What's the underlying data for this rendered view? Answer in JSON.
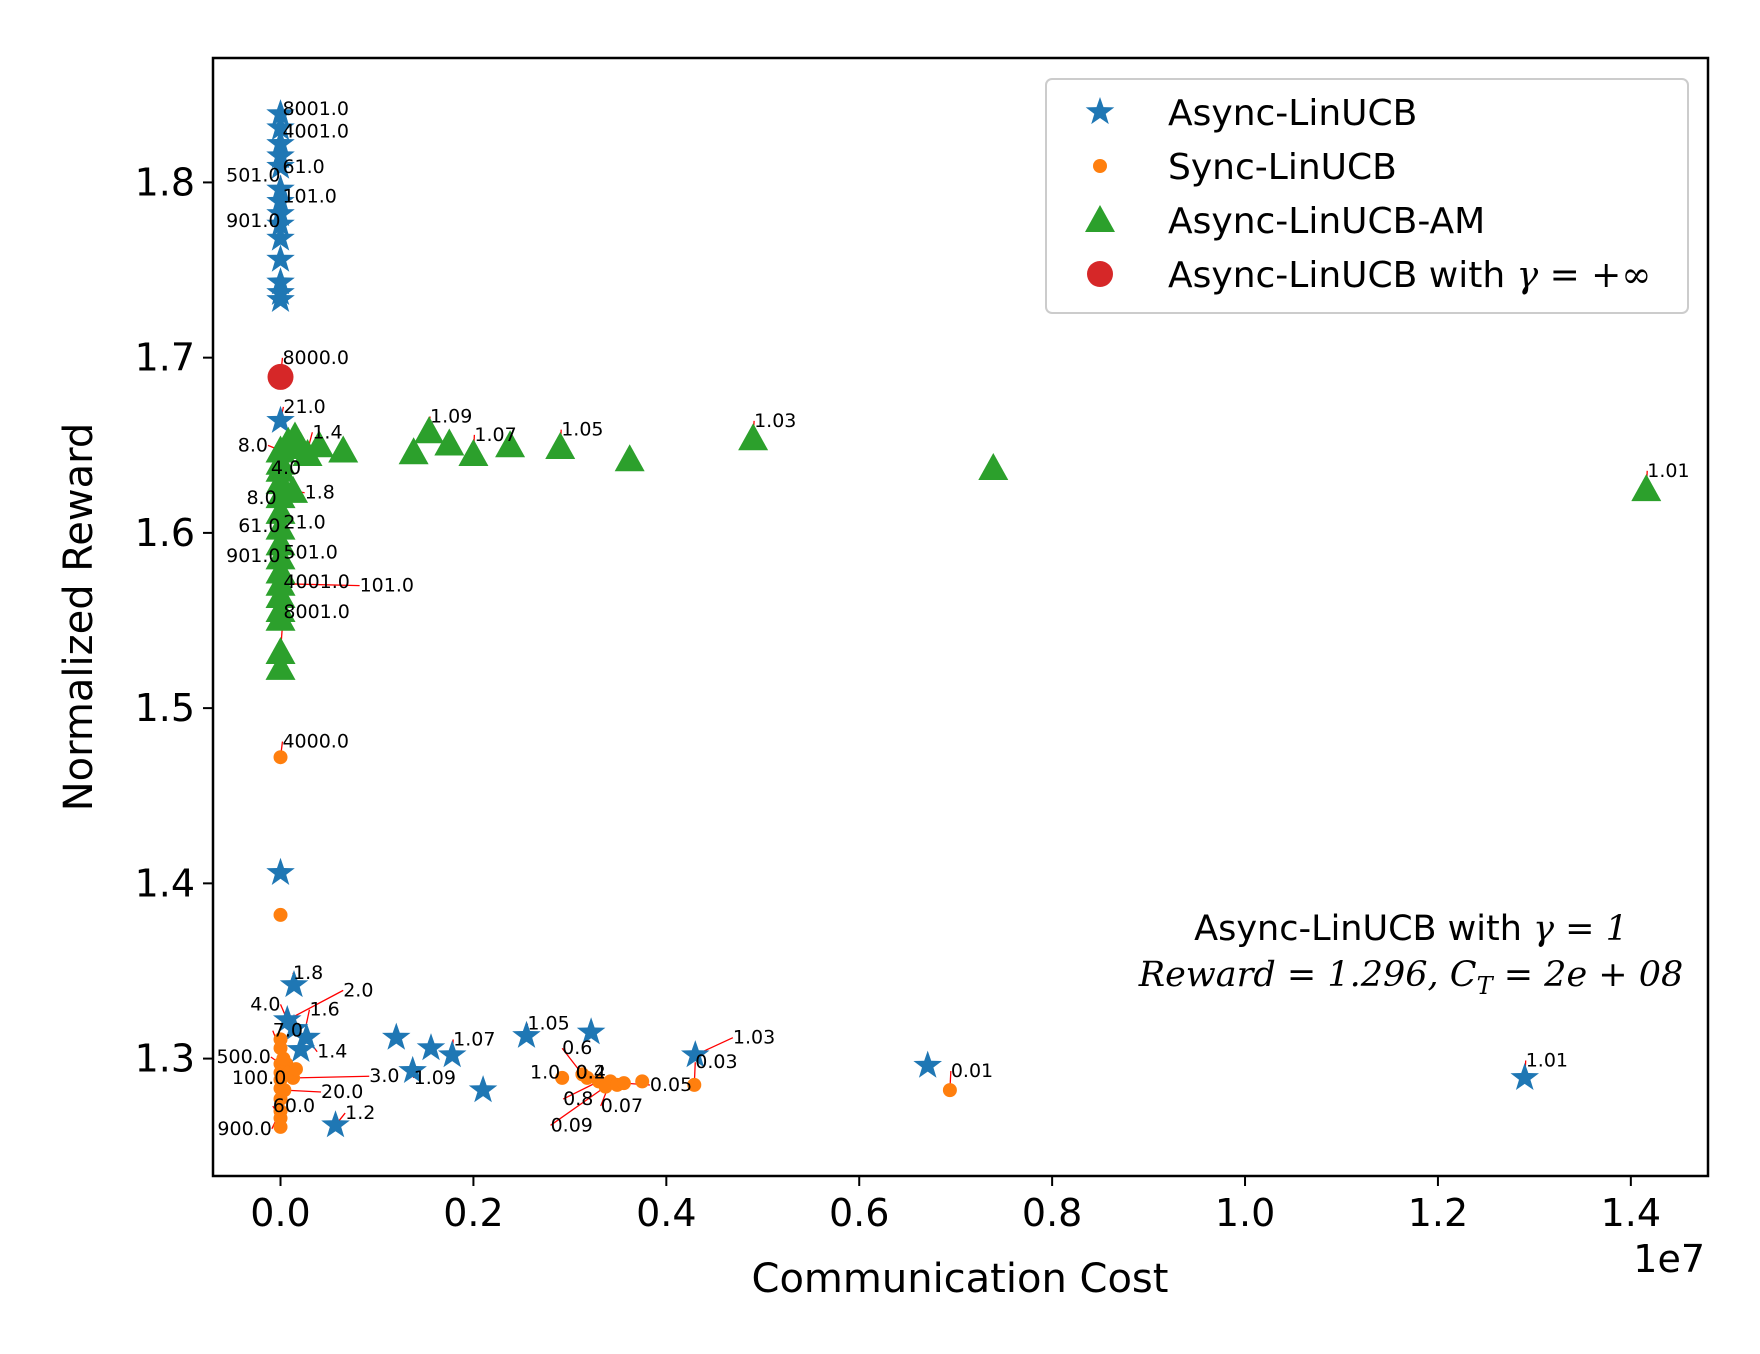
{
  "chart_data": {
    "type": "scatter",
    "title": "",
    "xlabel": "Communication Cost",
    "ylabel": "Normalized Reward",
    "x_offset_text": "1e7",
    "xlim": [
      -0.07,
      1.48
    ],
    "ylim": [
      1.233,
      1.871
    ],
    "x_ticks": [
      0.0,
      0.2,
      0.4,
      0.6,
      0.8,
      1.0,
      1.2,
      1.4
    ],
    "x_tick_labels": [
      "0.0",
      "0.2",
      "0.4",
      "0.6",
      "0.8",
      "1.0",
      "1.2",
      "1.4"
    ],
    "y_ticks": [
      1.3,
      1.4,
      1.5,
      1.6,
      1.7,
      1.8
    ],
    "y_tick_labels": [
      "1.3",
      "1.4",
      "1.5",
      "1.6",
      "1.7",
      "1.8"
    ],
    "grid": false,
    "legend_position": "top-right",
    "colors": {
      "async": "#1f77b4",
      "sync": "#ff7f0e",
      "am": "#2ca02c",
      "inf": "#d62728",
      "annotation_line": "#ff0000"
    },
    "legend": [
      {
        "label": "Async-LinUCB",
        "series": "async"
      },
      {
        "label": "Sync-LinUCB",
        "series": "sync"
      },
      {
        "label": "Async-LinUCB-AM",
        "series": "am"
      },
      {
        "label": "Async-LinUCB with ",
        "math": "γ = +∞",
        "series": "inf"
      }
    ],
    "note": {
      "line1_text": "Async-LinUCB with ",
      "line1_math": "γ = 1",
      "line2_math": "Reward = 1.296, C",
      "line2_sub": "T",
      "line2_rest": " = 2e + 08"
    },
    "series": {
      "async": {
        "name": "Async-LinUCB",
        "marker": "star",
        "points": [
          {
            "x": 0.0,
            "y": 1.839
          },
          {
            "x": 0.0,
            "y": 1.831
          },
          {
            "x": 0.0,
            "y": 1.822
          },
          {
            "x": 0.0,
            "y": 1.815
          },
          {
            "x": 0.0,
            "y": 1.809
          },
          {
            "x": 0.0,
            "y": 1.796
          },
          {
            "x": 0.0,
            "y": 1.789
          },
          {
            "x": 0.0,
            "y": 1.782
          },
          {
            "x": 0.0,
            "y": 1.776
          },
          {
            "x": 0.0,
            "y": 1.768
          },
          {
            "x": 0.0,
            "y": 1.756
          },
          {
            "x": 0.0,
            "y": 1.743
          },
          {
            "x": 0.0,
            "y": 1.737
          },
          {
            "x": 0.0,
            "y": 1.733
          },
          {
            "x": 0.0,
            "y": 1.664
          },
          {
            "x": 0.0,
            "y": 1.406
          },
          {
            "x": 0.014,
            "y": 1.342
          },
          {
            "x": 0.007,
            "y": 1.322
          },
          {
            "x": 0.014,
            "y": 1.317
          },
          {
            "x": 0.027,
            "y": 1.312
          },
          {
            "x": 0.021,
            "y": 1.305
          },
          {
            "x": 0.057,
            "y": 1.262
          },
          {
            "x": 0.12,
            "y": 1.312
          },
          {
            "x": 0.156,
            "y": 1.306
          },
          {
            "x": 0.137,
            "y": 1.293
          },
          {
            "x": 0.178,
            "y": 1.302
          },
          {
            "x": 0.21,
            "y": 1.282
          },
          {
            "x": 0.255,
            "y": 1.313
          },
          {
            "x": 0.322,
            "y": 1.315
          },
          {
            "x": 0.43,
            "y": 1.302
          },
          {
            "x": 0.671,
            "y": 1.296
          },
          {
            "x": 1.29,
            "y": 1.289
          }
        ]
      },
      "sync": {
        "name": "Sync-LinUCB",
        "marker": "circle",
        "points": [
          {
            "x": 0.0,
            "y": 1.472
          },
          {
            "x": 0.0,
            "y": 1.382
          },
          {
            "x": 0.0,
            "y": 1.311
          },
          {
            "x": 0.0,
            "y": 1.306
          },
          {
            "x": 0.0,
            "y": 1.297
          },
          {
            "x": 0.0,
            "y": 1.292
          },
          {
            "x": 0.0,
            "y": 1.288
          },
          {
            "x": 0.0,
            "y": 1.283
          },
          {
            "x": 0.0,
            "y": 1.277
          },
          {
            "x": 0.0,
            "y": 1.27
          },
          {
            "x": 0.0,
            "y": 1.266
          },
          {
            "x": 0.0,
            "y": 1.261
          },
          {
            "x": 0.006,
            "y": 1.297
          },
          {
            "x": 0.009,
            "y": 1.292
          },
          {
            "x": 0.013,
            "y": 1.289
          },
          {
            "x": 0.016,
            "y": 1.294
          },
          {
            "x": 0.004,
            "y": 1.282
          },
          {
            "x": 0.003,
            "y": 1.3
          },
          {
            "x": 0.292,
            "y": 1.289
          },
          {
            "x": 0.313,
            "y": 1.291
          },
          {
            "x": 0.318,
            "y": 1.289
          },
          {
            "x": 0.33,
            "y": 1.287
          },
          {
            "x": 0.337,
            "y": 1.284
          },
          {
            "x": 0.342,
            "y": 1.287
          },
          {
            "x": 0.349,
            "y": 1.285
          },
          {
            "x": 0.356,
            "y": 1.286
          },
          {
            "x": 0.375,
            "y": 1.287
          },
          {
            "x": 0.429,
            "y": 1.285
          },
          {
            "x": 0.694,
            "y": 1.282
          }
        ]
      },
      "am": {
        "name": "Async-LinUCB-AM",
        "marker": "triangle",
        "points": [
          {
            "x": 0.0,
            "y": 1.647
          },
          {
            "x": 0.0,
            "y": 1.64
          },
          {
            "x": 0.0,
            "y": 1.636
          },
          {
            "x": 0.0,
            "y": 1.629
          },
          {
            "x": 0.0,
            "y": 1.621
          },
          {
            "x": 0.0,
            "y": 1.612
          },
          {
            "x": 0.0,
            "y": 1.603
          },
          {
            "x": 0.0,
            "y": 1.594
          },
          {
            "x": 0.0,
            "y": 1.586
          },
          {
            "x": 0.0,
            "y": 1.578
          },
          {
            "x": 0.0,
            "y": 1.571
          },
          {
            "x": 0.0,
            "y": 1.564
          },
          {
            "x": 0.0,
            "y": 1.556
          },
          {
            "x": 0.0,
            "y": 1.551
          },
          {
            "x": 0.0,
            "y": 1.532
          },
          {
            "x": 0.0,
            "y": 1.523
          },
          {
            "x": 0.008,
            "y": 1.652
          },
          {
            "x": 0.015,
            "y": 1.655
          },
          {
            "x": 0.021,
            "y": 1.649
          },
          {
            "x": 0.028,
            "y": 1.645
          },
          {
            "x": 0.013,
            "y": 1.624
          },
          {
            "x": 0.04,
            "y": 1.65
          },
          {
            "x": 0.065,
            "y": 1.647
          },
          {
            "x": 0.138,
            "y": 1.646
          },
          {
            "x": 0.154,
            "y": 1.658
          },
          {
            "x": 0.175,
            "y": 1.651
          },
          {
            "x": 0.2,
            "y": 1.645
          },
          {
            "x": 0.238,
            "y": 1.65
          },
          {
            "x": 0.29,
            "y": 1.649
          },
          {
            "x": 0.362,
            "y": 1.642
          },
          {
            "x": 0.49,
            "y": 1.654
          },
          {
            "x": 0.739,
            "y": 1.637
          },
          {
            "x": 1.416,
            "y": 1.625
          }
        ]
      },
      "inf": {
        "name": "Async-LinUCB with γ = +∞",
        "marker": "circle-large",
        "points": [
          {
            "x": 0.0,
            "y": 1.689
          }
        ]
      }
    },
    "annotations": [
      {
        "text": "8001.0",
        "point": [
          0.0,
          1.839
        ],
        "label_at": [
          0.002,
          1.8385
        ],
        "anchor": "start"
      },
      {
        "text": "4001.0",
        "point": [
          0.0,
          1.822
        ],
        "label_at": [
          0.002,
          1.8255
        ],
        "anchor": "start"
      },
      {
        "text": "61.0",
        "point": [
          0.0,
          1.809
        ],
        "label_at": [
          0.002,
          1.8055
        ],
        "anchor": "start"
      },
      {
        "text": "501.0",
        "point": [
          0.0,
          1.796
        ],
        "label_at": [
          0.0,
          1.8005
        ],
        "anchor": "end"
      },
      {
        "text": "101.0",
        "point": [
          0.0,
          1.789
        ],
        "label_at": [
          0.002,
          1.7885
        ],
        "anchor": "start"
      },
      {
        "text": "901.0",
        "point": [
          0.0,
          1.776
        ],
        "label_at": [
          0.0,
          1.7745
        ],
        "anchor": "end"
      },
      {
        "text": "8000.0",
        "point": [
          0.0,
          1.689
        ],
        "label_at": [
          0.002,
          1.6965
        ],
        "anchor": "start"
      },
      {
        "text": "21.0",
        "point": [
          0.0,
          1.664
        ],
        "label_at": [
          0.003,
          1.6685
        ],
        "anchor": "start"
      },
      {
        "text": "1.09",
        "point": [
          0.154,
          1.658
        ],
        "label_at": [
          0.155,
          1.663
        ],
        "anchor": "start"
      },
      {
        "text": "1.4",
        "point": [
          0.028,
          1.647
        ],
        "label_at": [
          0.033,
          1.654
        ],
        "anchor": "start"
      },
      {
        "text": "1.07",
        "point": [
          0.2,
          1.645
        ],
        "label_at": [
          0.201,
          1.6525
        ],
        "anchor": "start"
      },
      {
        "text": "1.05",
        "point": [
          0.29,
          1.649
        ],
        "label_at": [
          0.291,
          1.6555
        ],
        "anchor": "start"
      },
      {
        "text": "1.03",
        "point": [
          0.49,
          1.654
        ],
        "label_at": [
          0.491,
          1.6605
        ],
        "anchor": "start"
      },
      {
        "text": "1.01",
        "point": [
          1.416,
          1.625
        ],
        "label_at": [
          1.417,
          1.632
        ],
        "anchor": "start"
      },
      {
        "text": "8.0",
        "point": [
          0.0,
          1.647
        ],
        "label_at": [
          -0.013,
          1.6465
        ],
        "anchor": "end"
      },
      {
        "text": "4.0",
        "point": [
          0.0,
          1.636
        ],
        "label_at": [
          -0.01,
          1.6335
        ],
        "anchor": "start"
      },
      {
        "text": "1.8",
        "point": [
          0.013,
          1.624
        ],
        "label_at": [
          0.025,
          1.6195
        ],
        "anchor": "start"
      },
      {
        "text": "8.0",
        "point": [
          0.0,
          1.621
        ],
        "label_at": [
          -0.004,
          1.6165
        ],
        "anchor": "end"
      },
      {
        "text": "21.0",
        "point": [
          0.0,
          1.603
        ],
        "label_at": [
          0.003,
          1.6025
        ],
        "anchor": "start"
      },
      {
        "text": "61.0",
        "point": [
          0.0,
          1.594
        ],
        "label_at": [
          0.0,
          1.6005
        ],
        "anchor": "end"
      },
      {
        "text": "901.0",
        "point": [
          0.0,
          1.578
        ],
        "label_at": [
          0.0,
          1.5835
        ],
        "anchor": "end"
      },
      {
        "text": "501.0",
        "point": [
          0.0,
          1.586
        ],
        "label_at": [
          0.003,
          1.5855
        ],
        "anchor": "start"
      },
      {
        "text": "101.0",
        "point": [
          0.0,
          1.571
        ],
        "label_at": [
          0.082,
          1.5665
        ],
        "anchor": "start"
      },
      {
        "text": "4001.0",
        "point": [
          0.0,
          1.556
        ],
        "label_at": [
          0.003,
          1.5685
        ],
        "anchor": "start"
      },
      {
        "text": "8001.0",
        "point": [
          0.0,
          1.532
        ],
        "label_at": [
          0.003,
          1.5515
        ],
        "anchor": "start"
      },
      {
        "text": "4000.0",
        "point": [
          0.0,
          1.472
        ],
        "label_at": [
          0.002,
          1.4775
        ],
        "anchor": "start"
      },
      {
        "text": "1.8",
        "point": [
          0.014,
          1.342
        ],
        "label_at": [
          0.013,
          1.3455
        ],
        "anchor": "start"
      },
      {
        "text": "2.0",
        "point": [
          0.007,
          1.322
        ],
        "label_at": [
          0.065,
          1.3355
        ],
        "anchor": "start"
      },
      {
        "text": "4.0",
        "point": [
          0.007,
          1.322
        ],
        "label_at": [
          0.0,
          1.3275
        ],
        "anchor": "end"
      },
      {
        "text": "1.6",
        "point": [
          0.021,
          1.305
        ],
        "label_at": [
          0.03,
          1.3245
        ],
        "anchor": "start"
      },
      {
        "text": "7.0",
        "point": [
          0.003,
          1.3
        ],
        "label_at": [
          -0.008,
          1.3125
        ],
        "anchor": "start"
      },
      {
        "text": "1.4",
        "point": [
          0.027,
          1.312
        ],
        "label_at": [
          0.038,
          1.3005
        ],
        "anchor": "start"
      },
      {
        "text": "500.0",
        "point": [
          0.0,
          1.297
        ],
        "label_at": [
          -0.01,
          1.2975
        ],
        "anchor": "end"
      },
      {
        "text": "100.0",
        "point": [
          0.0,
          1.288
        ],
        "label_at": [
          0.006,
          1.2855
        ],
        "anchor": "end"
      },
      {
        "text": "3.0",
        "point": [
          0.016,
          1.289
        ],
        "label_at": [
          0.092,
          1.2865
        ],
        "anchor": "start"
      },
      {
        "text": "1.09",
        "point": [
          0.137,
          1.293
        ],
        "label_at": [
          0.138,
          1.2855
        ],
        "anchor": "start"
      },
      {
        "text": "20.0",
        "point": [
          0.004,
          1.282
        ],
        "label_at": [
          0.042,
          1.2775
        ],
        "anchor": "start"
      },
      {
        "text": "60.0",
        "point": [
          0.0,
          1.266
        ],
        "label_at": [
          -0.008,
          1.2695
        ],
        "anchor": "start"
      },
      {
        "text": "1.2",
        "point": [
          0.057,
          1.262
        ],
        "label_at": [
          0.067,
          1.2655
        ],
        "anchor": "start"
      },
      {
        "text": "900.0",
        "point": [
          0.0,
          1.27
        ],
        "label_at": [
          -0.009,
          1.2565
        ],
        "anchor": "end"
      },
      {
        "text": "1.07",
        "point": [
          0.178,
          1.302
        ],
        "label_at": [
          0.179,
          1.3075
        ],
        "anchor": "start"
      },
      {
        "text": "1.05",
        "point": [
          0.255,
          1.313
        ],
        "label_at": [
          0.256,
          1.3165
        ],
        "anchor": "start"
      },
      {
        "text": "1.0",
        "point": [
          0.292,
          1.289
        ],
        "label_at": [
          0.29,
          1.2885
        ],
        "anchor": "end"
      },
      {
        "text": "0.6",
        "point": [
          0.313,
          1.291
        ],
        "label_at": [
          0.292,
          1.3025
        ],
        "anchor": "start"
      },
      {
        "text": "0.2",
        "point": [
          0.313,
          1.291
        ],
        "label_at": [
          0.306,
          1.2885
        ],
        "anchor": "start"
      },
      {
        "text": "0.4",
        "point": [
          0.318,
          1.289
        ],
        "label_at": [
          0.306,
          1.2885
        ],
        "anchor": "start"
      },
      {
        "text": "0.8",
        "point": [
          0.33,
          1.287
        ],
        "label_at": [
          0.293,
          1.2735
        ],
        "anchor": "start"
      },
      {
        "text": "0.07",
        "point": [
          0.342,
          1.287
        ],
        "label_at": [
          0.332,
          1.2695
        ],
        "anchor": "start"
      },
      {
        "text": "0.05",
        "point": [
          0.356,
          1.286
        ],
        "label_at": [
          0.383,
          1.2815
        ],
        "anchor": "start"
      },
      {
        "text": "0.09",
        "point": [
          0.337,
          1.284
        ],
        "label_at": [
          0.28,
          1.2585
        ],
        "anchor": "start"
      },
      {
        "text": "1.03",
        "point": [
          0.43,
          1.302
        ],
        "label_at": [
          0.469,
          1.3085
        ],
        "anchor": "start"
      },
      {
        "text": "0.03",
        "point": [
          0.429,
          1.285
        ],
        "label_at": [
          0.43,
          1.2945
        ],
        "anchor": "start"
      },
      {
        "text": "0.01",
        "point": [
          0.694,
          1.282
        ],
        "label_at": [
          0.695,
          1.2895
        ],
        "anchor": "start"
      },
      {
        "text": "1.01",
        "point": [
          1.29,
          1.289
        ],
        "label_at": [
          1.291,
          1.2955
        ],
        "anchor": "start"
      }
    ]
  }
}
